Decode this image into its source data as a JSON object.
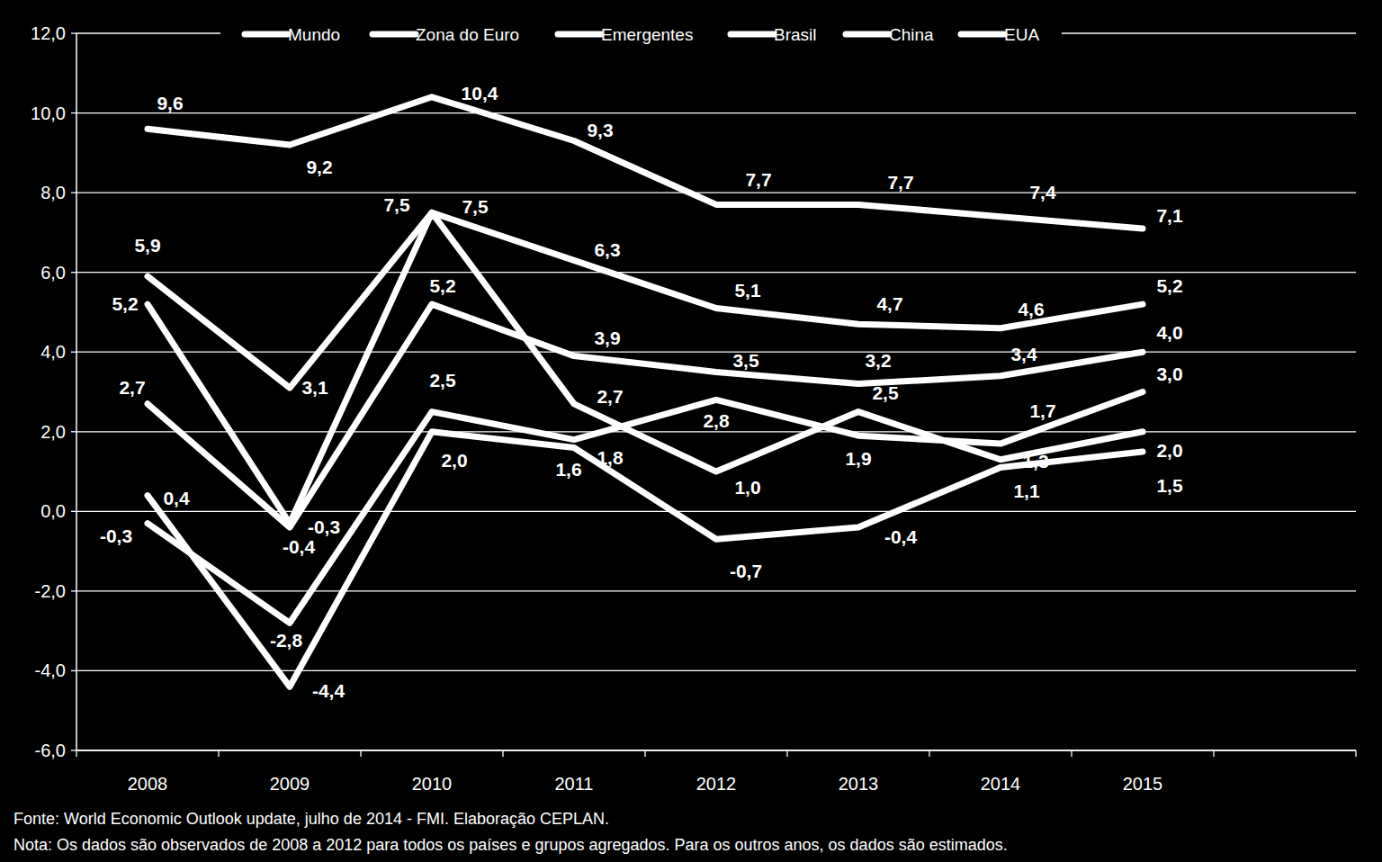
{
  "chart_data": {
    "type": "line",
    "categories": [
      "2008",
      "2009",
      "2010",
      "2011",
      "2012",
      "2013",
      "2014",
      "2015",
      null
    ],
    "series": [
      {
        "name": "Mundo",
        "color": "#ffffff",
        "values": [
          2.7,
          -0.4,
          5.2,
          3.9,
          3.5,
          3.2,
          3.4,
          4.0,
          null
        ],
        "value_labels": [
          "2,7",
          "-0,4",
          "5,2",
          "3,9",
          "3,5",
          "3,2",
          "3,4",
          "4,0",
          null
        ]
      },
      {
        "name": "Zona do Euro",
        "color": "#ffffff",
        "values": [
          0.4,
          -4.4,
          2.0,
          1.6,
          -0.7,
          -0.4,
          1.1,
          1.5,
          null
        ],
        "value_labels": [
          "0,4",
          "-4,4",
          "2,0",
          "1,6",
          "-0,7",
          "-0,4",
          "1,1",
          "1,5",
          null
        ]
      },
      {
        "name": "Emergentes",
        "color": "#ffffff",
        "values": [
          5.9,
          3.1,
          7.5,
          6.3,
          5.1,
          4.7,
          4.6,
          5.2,
          null
        ],
        "value_labels": [
          "5,9",
          "3,1",
          "7,5",
          "6,3",
          "5,1",
          "4,7",
          "4,6",
          "5,2",
          null
        ]
      },
      {
        "name": "Brasil",
        "color": "#ffffff",
        "values": [
          5.2,
          -0.3,
          7.5,
          2.7,
          1.0,
          2.5,
          1.3,
          2.0,
          null
        ],
        "value_labels": [
          "5,2",
          "-0,3",
          "7,5",
          "2,7",
          "1,0",
          "2,5",
          "1,3",
          "2,0",
          null
        ]
      },
      {
        "name": "China",
        "color": "#ffffff",
        "values": [
          9.6,
          9.2,
          10.4,
          9.3,
          7.7,
          7.7,
          7.4,
          7.1,
          null
        ],
        "value_labels": [
          "9,6",
          "9,2",
          "10,4",
          "9,3",
          "7,7",
          "7,7",
          "7,4",
          "7,1",
          null
        ]
      },
      {
        "name": "EUA",
        "color": "#ffffff",
        "values": [
          -0.3,
          -2.8,
          2.5,
          1.8,
          2.8,
          1.9,
          1.7,
          3.0,
          null
        ],
        "value_labels": [
          "-0,3",
          "-2,8",
          "2,5",
          "1,8",
          "2,8",
          "1,9",
          "1,7",
          "3,0",
          null
        ]
      }
    ],
    "ylim": [
      -6,
      12
    ],
    "yticks": [
      {
        "value": -6,
        "label": "-6,0"
      },
      {
        "value": -4,
        "label": "-4,0"
      },
      {
        "value": -2,
        "label": "-2,0"
      },
      {
        "value": 0,
        "label": "0,0"
      },
      {
        "value": 2,
        "label": "2,0"
      },
      {
        "value": 4,
        "label": "4,0"
      },
      {
        "value": 6,
        "label": "6,0"
      },
      {
        "value": 8,
        "label": "8,0"
      },
      {
        "value": 10,
        "label": "10,0"
      },
      {
        "value": 12,
        "label": "12,0"
      }
    ],
    "grid": true,
    "legend": "top",
    "data_labels": true,
    "annotations": [
      "Fonte: World Economic Outlook update, julho de 2014 - FMI. Elaboração CEPLAN.",
      "Nota: Os dados são observados de 2008 a 2012 para todos os países e grupos agregados. Para os outros anos, os dados são estimados."
    ]
  }
}
